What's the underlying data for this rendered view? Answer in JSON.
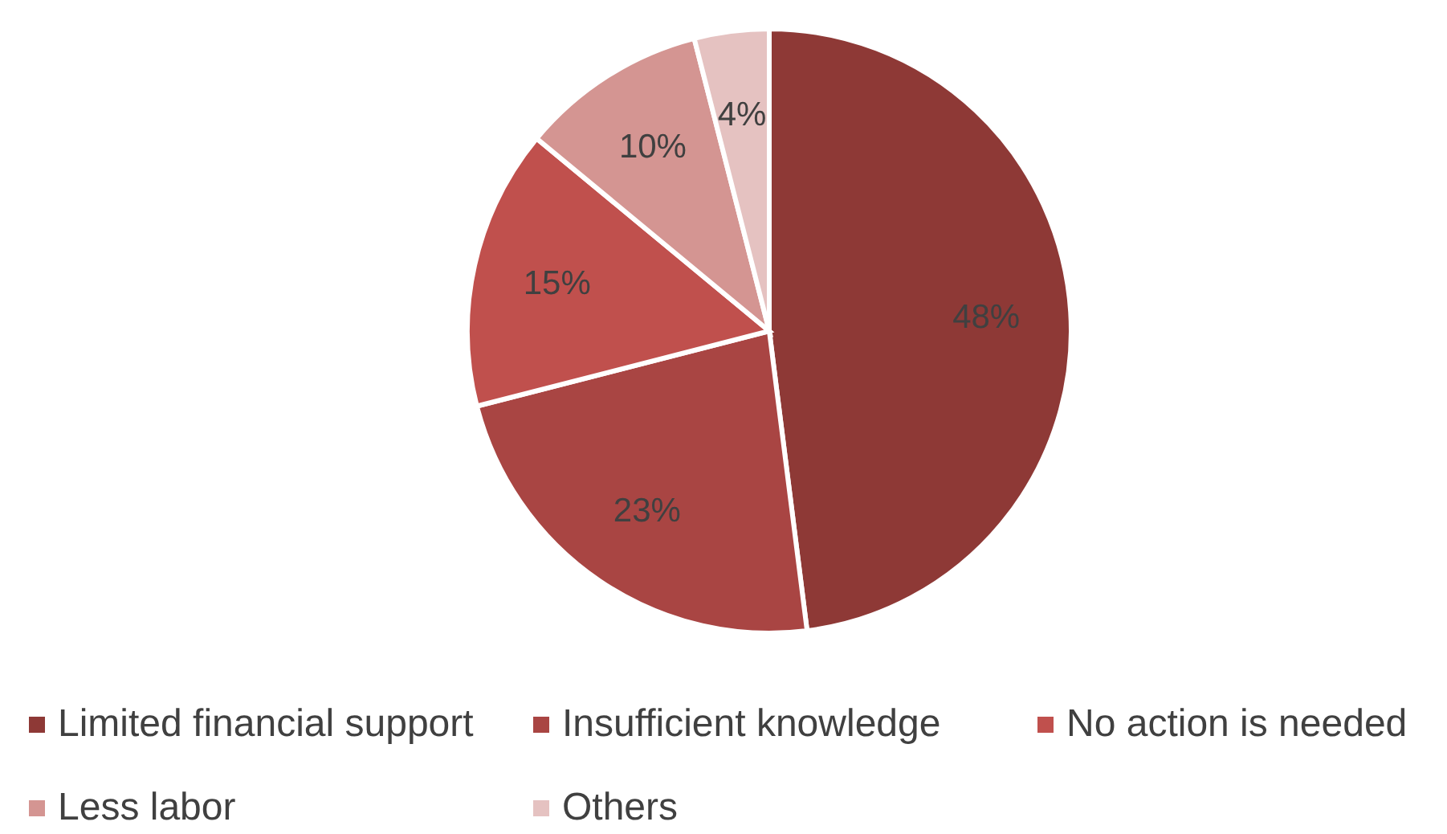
{
  "chart_data": {
    "type": "pie",
    "categories": [
      "Limited financial support",
      "Insufficient knowledge",
      "No action is needed",
      "Less labor",
      "Others"
    ],
    "values": [
      48,
      23,
      15,
      10,
      4
    ],
    "colors": [
      "#8e3936",
      "#a94543",
      "#c0504d",
      "#d49592",
      "#e5c2c1"
    ],
    "value_labels": [
      "48%",
      "23%",
      "15%",
      "10%",
      "4%"
    ],
    "legend": "bottom"
  }
}
